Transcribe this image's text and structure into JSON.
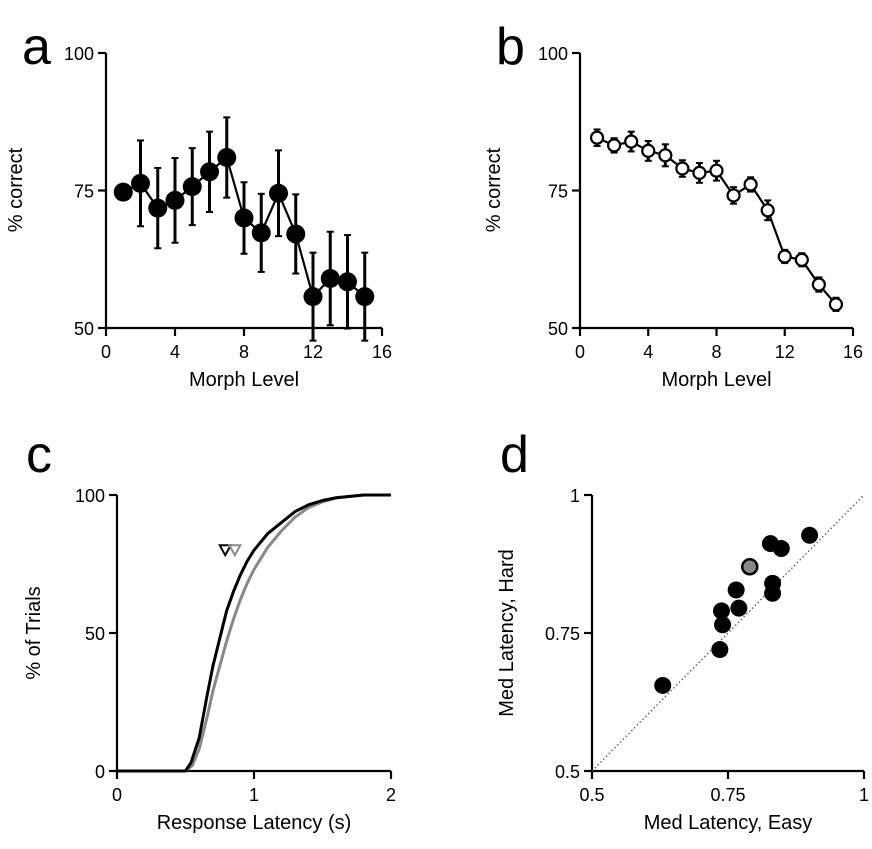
{
  "chart_data": [
    {
      "panel": "a",
      "type": "line",
      "xlabel": "Morph Level",
      "ylabel": "% correct",
      "xlim": [
        0,
        16
      ],
      "ylim": [
        50,
        100
      ],
      "xticks": [
        "0",
        "4",
        "8",
        "12",
        "16"
      ],
      "yticks": [
        "50",
        "75",
        "100"
      ],
      "marker": "filled-circle",
      "series": [
        {
          "x": [
            1,
            2,
            3,
            4,
            5,
            6,
            7,
            8,
            9,
            10,
            11,
            12,
            13,
            14,
            15
          ],
          "values": [
            74.7,
            76.3,
            71.8,
            73.2,
            75.7,
            78.4,
            81.0,
            70.0,
            67.3,
            74.5,
            67.1,
            55.7,
            59.0,
            58.4,
            55.7
          ],
          "err": [
            0,
            7.8,
            7.3,
            7.7,
            7.0,
            7.3,
            7.3,
            6.5,
            7.1,
            7.8,
            7.2,
            8.0,
            8.5,
            8.5,
            8.0
          ]
        }
      ]
    },
    {
      "panel": "b",
      "type": "line",
      "xlabel": "Morph Level",
      "ylabel": "% correct",
      "xlim": [
        0,
        16
      ],
      "ylim": [
        50,
        100
      ],
      "xticks": [
        "0",
        "4",
        "8",
        "12",
        "16"
      ],
      "yticks": [
        "50",
        "75",
        "100"
      ],
      "marker": "open-circle",
      "series": [
        {
          "x": [
            1,
            2,
            3,
            4,
            5,
            6,
            7,
            8,
            9,
            10,
            11,
            12,
            13,
            14,
            15
          ],
          "values": [
            84.6,
            83.2,
            83.9,
            82.2,
            81.4,
            79.0,
            78.2,
            78.6,
            74.1,
            76.1,
            71.4,
            63.0,
            62.4,
            57.9,
            54.3
          ],
          "err": [
            1.5,
            1.3,
            1.8,
            1.8,
            2.0,
            1.5,
            1.8,
            1.8,
            1.5,
            1.3,
            1.8,
            1.2,
            1.2,
            1.3,
            1.2
          ]
        }
      ]
    },
    {
      "panel": "c",
      "type": "line",
      "xlabel": "Response Latency (s)",
      "ylabel": "% of Trials",
      "xlim": [
        0,
        2
      ],
      "ylim": [
        0,
        100
      ],
      "xticks": [
        "0",
        "1",
        "2"
      ],
      "yticks": [
        "0",
        "50",
        "100"
      ],
      "series": [
        {
          "color": "#000000",
          "x": [
            0,
            0.5,
            0.54,
            0.6,
            0.66,
            0.7,
            0.75,
            0.8,
            0.85,
            0.9,
            0.95,
            1.0,
            1.1,
            1.2,
            1.3,
            1.4,
            1.5,
            1.6,
            1.7,
            1.8,
            1.9,
            2.0
          ],
          "values": [
            0,
            0,
            3,
            12,
            28,
            38,
            48,
            58,
            65,
            71,
            76,
            80,
            86,
            90,
            94,
            96.5,
            98,
            99,
            99.5,
            100,
            100,
            100
          ]
        },
        {
          "color": "#888888",
          "x": [
            0,
            0.5,
            0.55,
            0.6,
            0.66,
            0.7,
            0.75,
            0.8,
            0.85,
            0.9,
            0.95,
            1.0,
            1.1,
            1.2,
            1.3,
            1.4,
            1.5,
            1.6,
            1.7,
            1.8,
            1.9,
            2.0
          ],
          "values": [
            0,
            0,
            2,
            8,
            20,
            29,
            38,
            47,
            55,
            62,
            68,
            73,
            81,
            87,
            92,
            95.5,
            97.5,
            99,
            99.5,
            100,
            100,
            100
          ]
        }
      ],
      "medians": [
        {
          "x": 0.79,
          "y": 80,
          "color": "#000000"
        },
        {
          "x": 0.86,
          "y": 80,
          "color": "#888888"
        }
      ]
    },
    {
      "panel": "d",
      "type": "scatter",
      "xlabel": "Med Latency, Easy",
      "ylabel": "Med Latency, Hard",
      "xlim": [
        0.5,
        1
      ],
      "ylim": [
        0.5,
        1
      ],
      "xticks": [
        "0.5",
        "0.75",
        "1"
      ],
      "yticks": [
        "0.5",
        "0.75",
        "1"
      ],
      "unity_line": true,
      "points": [
        {
          "x": 0.63,
          "y": 0.655,
          "color": "#000000"
        },
        {
          "x": 0.735,
          "y": 0.72,
          "color": "#000000"
        },
        {
          "x": 0.74,
          "y": 0.765,
          "color": "#000000"
        },
        {
          "x": 0.738,
          "y": 0.79,
          "color": "#000000"
        },
        {
          "x": 0.77,
          "y": 0.795,
          "color": "#000000"
        },
        {
          "x": 0.765,
          "y": 0.828,
          "color": "#000000"
        },
        {
          "x": 0.79,
          "y": 0.87,
          "color": "#888888"
        },
        {
          "x": 0.828,
          "y": 0.912,
          "color": "#000000"
        },
        {
          "x": 0.848,
          "y": 0.903,
          "color": "#000000"
        },
        {
          "x": 0.832,
          "y": 0.84,
          "color": "#000000"
        },
        {
          "x": 0.832,
          "y": 0.822,
          "color": "#000000"
        },
        {
          "x": 0.9,
          "y": 0.927,
          "color": "#000000"
        }
      ]
    }
  ]
}
